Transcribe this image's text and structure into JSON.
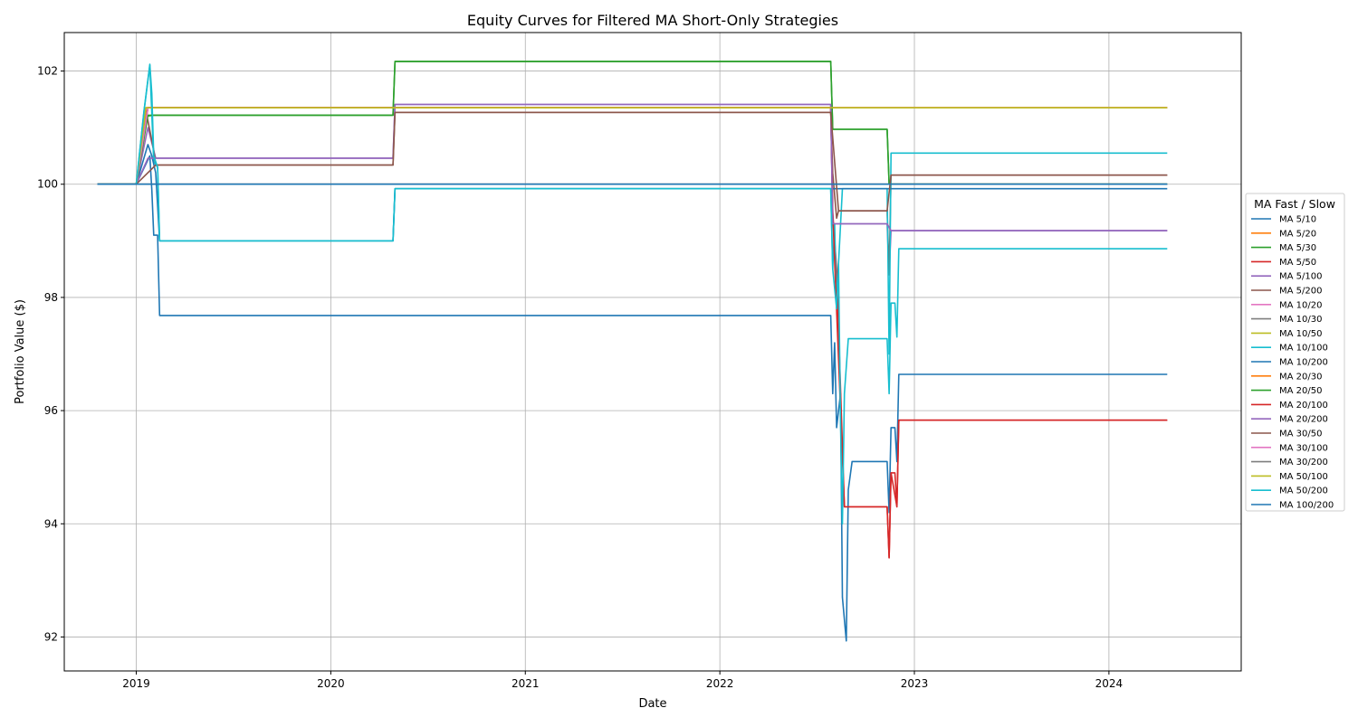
{
  "chart_data": {
    "type": "line",
    "title": "Equity Curves for Filtered MA Short-Only Strategies",
    "xlabel": "Date",
    "ylabel": "Portfolio Value ($)",
    "xlim": [
      2018.63,
      2024.68
    ],
    "ylim": [
      91.4,
      102.68
    ],
    "x_ticks": [
      2019,
      2020,
      2021,
      2022,
      2023,
      2024
    ],
    "x_tick_labels": [
      "2019",
      "2020",
      "2021",
      "2022",
      "2023",
      "2024"
    ],
    "y_ticks": [
      92,
      94,
      96,
      98,
      100,
      102
    ],
    "y_tick_labels": [
      "92",
      "94",
      "96",
      "98",
      "100",
      "102"
    ],
    "grid": true,
    "legend": {
      "title": "MA Fast / Slow",
      "placement": "right-outside"
    },
    "series": [
      {
        "name": "MA 5/10",
        "color": "#1f77b4",
        "points": [
          [
            2018.8,
            100
          ],
          [
            2019.0,
            100
          ],
          [
            2019.07,
            100.5
          ],
          [
            2019.08,
            99.9
          ],
          [
            2019.09,
            99.1
          ],
          [
            2019.11,
            99.1
          ],
          [
            2019.12,
            97.68
          ],
          [
            2022.57,
            97.68
          ],
          [
            2022.58,
            96.3
          ],
          [
            2022.59,
            97.2
          ],
          [
            2022.6,
            95.7
          ],
          [
            2022.62,
            96.3
          ],
          [
            2022.63,
            92.7
          ],
          [
            2022.65,
            91.93
          ],
          [
            2022.66,
            94.6
          ],
          [
            2022.68,
            95.1
          ],
          [
            2022.86,
            95.1
          ],
          [
            2022.87,
            94.2
          ],
          [
            2022.88,
            95.7
          ],
          [
            2022.9,
            95.7
          ],
          [
            2022.91,
            95.1
          ],
          [
            2022.92,
            96.64
          ],
          [
            2024.3,
            96.64
          ]
        ]
      },
      {
        "name": "MA 5/20",
        "color": "#ff7f0e",
        "points": [
          [
            2018.8,
            100
          ],
          [
            2019.0,
            100
          ],
          [
            2019.05,
            101.35
          ],
          [
            2024.3,
            101.35
          ]
        ]
      },
      {
        "name": "MA 5/30",
        "color": "#2ca02c",
        "points": [
          [
            2018.8,
            100
          ],
          [
            2019.0,
            100
          ],
          [
            2019.05,
            101.2
          ],
          [
            2019.09,
            101.22
          ],
          [
            2020.32,
            101.22
          ],
          [
            2020.33,
            102.17
          ],
          [
            2022.57,
            102.17
          ],
          [
            2022.58,
            100.97
          ],
          [
            2022.86,
            100.97
          ],
          [
            2022.87,
            100.0
          ],
          [
            2024.3,
            100.0
          ]
        ]
      },
      {
        "name": "MA 5/50",
        "color": "#d62728",
        "points": [
          [
            2018.8,
            100
          ],
          [
            2019.0,
            100
          ],
          [
            2019.06,
            101.35
          ],
          [
            2020.32,
            101.35
          ],
          [
            2020.33,
            101.35
          ],
          [
            2022.57,
            101.35
          ],
          [
            2022.58,
            99.5
          ],
          [
            2022.6,
            98.5
          ],
          [
            2022.62,
            96.4
          ],
          [
            2022.64,
            94.3
          ],
          [
            2022.86,
            94.3
          ],
          [
            2022.87,
            93.4
          ],
          [
            2022.88,
            94.9
          ],
          [
            2022.9,
            94.9
          ],
          [
            2022.91,
            94.3
          ],
          [
            2022.92,
            95.83
          ],
          [
            2024.3,
            95.83
          ]
        ]
      },
      {
        "name": "MA 5/100",
        "color": "#9467bd",
        "points": [
          [
            2018.8,
            100
          ],
          [
            2019.0,
            100
          ],
          [
            2019.06,
            101.0
          ],
          [
            2019.1,
            100.46
          ],
          [
            2020.32,
            100.46
          ],
          [
            2020.33,
            101.41
          ],
          [
            2022.57,
            101.41
          ],
          [
            2022.58,
            99.3
          ],
          [
            2022.86,
            99.3
          ],
          [
            2022.87,
            98.4
          ],
          [
            2022.88,
            99.18
          ],
          [
            2024.3,
            99.18
          ]
        ]
      },
      {
        "name": "MA 5/200",
        "color": "#8c564b",
        "points": [
          [
            2018.8,
            100
          ],
          [
            2019.0,
            100
          ],
          [
            2019.05,
            101.3
          ],
          [
            2019.09,
            100.6
          ],
          [
            2019.1,
            100.34
          ],
          [
            2020.32,
            100.34
          ],
          [
            2020.33,
            101.27
          ],
          [
            2022.57,
            101.27
          ],
          [
            2022.58,
            100.2
          ],
          [
            2022.6,
            99.4
          ],
          [
            2022.61,
            99.53
          ],
          [
            2022.86,
            99.53
          ],
          [
            2022.87,
            98.4
          ],
          [
            2022.88,
            100.16
          ],
          [
            2024.3,
            100.16
          ]
        ]
      },
      {
        "name": "MA 10/20",
        "color": "#e377c2",
        "points": [
          [
            2018.8,
            100
          ],
          [
            2019.0,
            100
          ],
          [
            2019.06,
            101.35
          ],
          [
            2024.3,
            101.35
          ]
        ]
      },
      {
        "name": "MA 10/30",
        "color": "#7f7f7f",
        "points": [
          [
            2018.8,
            100
          ],
          [
            2024.3,
            100
          ]
        ]
      },
      {
        "name": "MA 10/50",
        "color": "#bcbd22",
        "points": [
          [
            2018.8,
            100
          ],
          [
            2019.0,
            100
          ],
          [
            2019.05,
            101.35
          ],
          [
            2024.3,
            101.35
          ]
        ]
      },
      {
        "name": "MA 10/100",
        "color": "#17becf",
        "points": [
          [
            2018.8,
            100
          ],
          [
            2019.0,
            100
          ],
          [
            2019.04,
            101.3
          ],
          [
            2019.07,
            102.1
          ],
          [
            2019.09,
            100.4
          ],
          [
            2019.11,
            100.3
          ],
          [
            2019.12,
            99.0
          ],
          [
            2020.32,
            99.0
          ],
          [
            2020.33,
            99.92
          ],
          [
            2022.57,
            99.92
          ],
          [
            2022.58,
            98.5
          ],
          [
            2022.59,
            99.3
          ],
          [
            2022.6,
            97.9
          ],
          [
            2022.61,
            98.6
          ],
          [
            2022.63,
            99.92
          ],
          [
            2022.86,
            99.92
          ],
          [
            2022.87,
            97.0
          ],
          [
            2022.88,
            100.55
          ],
          [
            2024.3,
            100.55
          ]
        ]
      },
      {
        "name": "MA 10/200",
        "color": "#1f77b4",
        "points": [
          [
            2018.8,
            100
          ],
          [
            2019.0,
            100
          ],
          [
            2019.06,
            100.7
          ],
          [
            2019.08,
            100.5
          ],
          [
            2019.1,
            100.2
          ],
          [
            2019.12,
            99.0
          ],
          [
            2020.32,
            99.0
          ],
          [
            2020.33,
            99.92
          ],
          [
            2022.57,
            99.92
          ],
          [
            2024.3,
            99.92
          ]
        ]
      },
      {
        "name": "MA 20/30",
        "color": "#ff7f0e",
        "points": [
          [
            2018.8,
            100
          ],
          [
            2019.0,
            100
          ],
          [
            2019.05,
            101.35
          ],
          [
            2024.3,
            101.35
          ]
        ]
      },
      {
        "name": "MA 20/50",
        "color": "#2ca02c",
        "points": [
          [
            2018.8,
            100
          ],
          [
            2019.0,
            100
          ],
          [
            2019.06,
            101.22
          ],
          [
            2020.32,
            101.22
          ],
          [
            2020.33,
            102.17
          ],
          [
            2022.57,
            102.17
          ],
          [
            2022.58,
            100.97
          ],
          [
            2022.86,
            100.97
          ],
          [
            2022.87,
            100.0
          ],
          [
            2024.3,
            100.0
          ]
        ]
      },
      {
        "name": "MA 20/100",
        "color": "#d62728",
        "points": [
          [
            2018.8,
            100
          ],
          [
            2019.0,
            100
          ],
          [
            2019.06,
            101.35
          ],
          [
            2022.57,
            101.35
          ],
          [
            2022.58,
            99.5
          ],
          [
            2022.64,
            94.3
          ],
          [
            2022.86,
            94.3
          ],
          [
            2022.87,
            93.4
          ],
          [
            2022.88,
            94.9
          ],
          [
            2022.91,
            94.3
          ],
          [
            2022.92,
            95.83
          ],
          [
            2024.3,
            95.83
          ]
        ]
      },
      {
        "name": "MA 20/200",
        "color": "#9467bd",
        "points": [
          [
            2018.8,
            100
          ],
          [
            2019.0,
            100
          ],
          [
            2019.06,
            100.46
          ],
          [
            2020.32,
            100.46
          ],
          [
            2020.33,
            101.41
          ],
          [
            2022.57,
            101.41
          ],
          [
            2022.58,
            99.3
          ],
          [
            2022.86,
            99.3
          ],
          [
            2022.88,
            99.18
          ],
          [
            2024.3,
            99.18
          ]
        ]
      },
      {
        "name": "MA 30/50",
        "color": "#8c564b",
        "points": [
          [
            2018.8,
            100
          ],
          [
            2019.0,
            100
          ],
          [
            2019.1,
            100.34
          ],
          [
            2020.32,
            100.34
          ],
          [
            2020.33,
            101.27
          ],
          [
            2022.57,
            101.27
          ],
          [
            2022.61,
            99.53
          ],
          [
            2022.86,
            99.53
          ],
          [
            2022.88,
            100.16
          ],
          [
            2024.3,
            100.16
          ]
        ]
      },
      {
        "name": "MA 30/100",
        "color": "#e377c2",
        "points": [
          [
            2018.8,
            100
          ],
          [
            2019.0,
            100
          ],
          [
            2019.06,
            101.35
          ],
          [
            2024.3,
            101.35
          ]
        ]
      },
      {
        "name": "MA 30/200",
        "color": "#7f7f7f",
        "points": [
          [
            2018.8,
            100
          ],
          [
            2024.3,
            100
          ]
        ]
      },
      {
        "name": "MA 50/100",
        "color": "#bcbd22",
        "points": [
          [
            2018.8,
            100
          ],
          [
            2019.0,
            100
          ],
          [
            2019.05,
            101.35
          ],
          [
            2024.3,
            101.35
          ]
        ]
      },
      {
        "name": "MA 50/200",
        "color": "#17becf",
        "points": [
          [
            2018.8,
            100
          ],
          [
            2019.0,
            100
          ],
          [
            2019.04,
            101.3
          ],
          [
            2019.07,
            102.12
          ],
          [
            2019.08,
            101.6
          ],
          [
            2019.09,
            100.5
          ],
          [
            2019.11,
            100.3
          ],
          [
            2019.12,
            99.0
          ],
          [
            2020.32,
            99.0
          ],
          [
            2020.33,
            99.92
          ],
          [
            2022.57,
            99.92
          ],
          [
            2022.58,
            98.5
          ],
          [
            2022.6,
            97.8
          ],
          [
            2022.61,
            98.6
          ],
          [
            2022.62,
            95.8
          ],
          [
            2022.63,
            94.0
          ],
          [
            2022.64,
            96.3
          ],
          [
            2022.66,
            97.27
          ],
          [
            2022.86,
            97.27
          ],
          [
            2022.87,
            96.3
          ],
          [
            2022.88,
            97.9
          ],
          [
            2022.9,
            97.9
          ],
          [
            2022.91,
            97.3
          ],
          [
            2022.92,
            98.86
          ],
          [
            2024.3,
            98.86
          ]
        ]
      },
      {
        "name": "MA 100/200",
        "color": "#1f77b4",
        "points": [
          [
            2018.8,
            100
          ],
          [
            2024.3,
            100
          ]
        ]
      }
    ]
  }
}
